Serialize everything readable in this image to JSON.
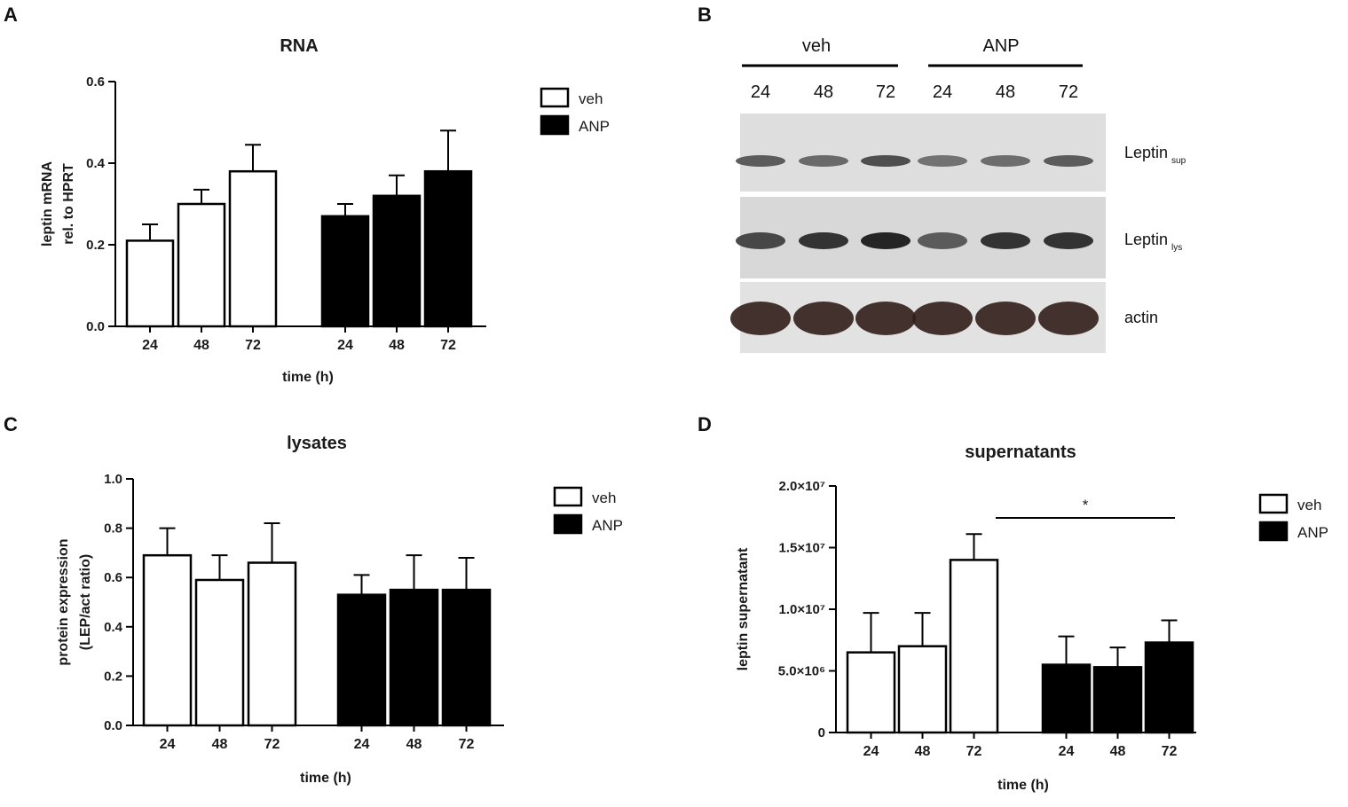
{
  "panel_letters": {
    "a": "A",
    "b": "B",
    "c": "C",
    "d": "D"
  },
  "colors": {
    "veh": "#ffffff",
    "anp": "#000000",
    "stroke": "#000000"
  },
  "chart_data": [
    {
      "id": "A",
      "type": "bar",
      "title": "RNA",
      "ylabel": [
        "leptin mRNA",
        "rel. to HPRT"
      ],
      "xlabel": "time (h)",
      "ylim": [
        0,
        0.6
      ],
      "yticks": [
        0.0,
        0.2,
        0.4,
        0.6
      ],
      "ytick_labels": [
        "0.0",
        "0.2",
        "0.4",
        "0.6"
      ],
      "categories": [
        "24",
        "48",
        "72"
      ],
      "series": [
        {
          "name": "veh",
          "values": [
            0.21,
            0.3,
            0.38
          ],
          "errors": [
            0.04,
            0.035,
            0.065
          ]
        },
        {
          "name": "ANP",
          "values": [
            0.27,
            0.32,
            0.38
          ],
          "errors": [
            0.03,
            0.05,
            0.1
          ]
        }
      ],
      "legend": [
        "veh",
        "ANP"
      ],
      "legend_position": "top-right",
      "annotation": ""
    },
    {
      "id": "C",
      "type": "bar",
      "title": "lysates",
      "ylabel": [
        "protein expression",
        "(LEP/act ratio)"
      ],
      "xlabel": "time (h)",
      "ylim": [
        0,
        1.0
      ],
      "yticks": [
        0.0,
        0.2,
        0.4,
        0.6,
        0.8,
        1.0
      ],
      "ytick_labels": [
        "0.0",
        "0.2",
        "0.4",
        "0.6",
        "0.8",
        "1.0"
      ],
      "categories": [
        "24",
        "48",
        "72"
      ],
      "series": [
        {
          "name": "veh",
          "values": [
            0.69,
            0.59,
            0.66
          ],
          "errors": [
            0.11,
            0.1,
            0.16
          ]
        },
        {
          "name": "ANP",
          "values": [
            0.53,
            0.55,
            0.55
          ],
          "errors": [
            0.08,
            0.14,
            0.13
          ]
        }
      ],
      "legend": [
        "veh",
        "ANP"
      ],
      "legend_position": "top-right",
      "annotation": ""
    },
    {
      "id": "D",
      "type": "bar",
      "title": "supernatants",
      "ylabel": [
        "leptin supernatant"
      ],
      "xlabel": "time (h)",
      "ylim": [
        0,
        20000000
      ],
      "yticks": [
        0,
        5000000,
        10000000,
        15000000,
        20000000
      ],
      "ytick_labels": [
        "0",
        "5.0×10⁶",
        "1.0×10⁷",
        "1.5×10⁷",
        "2.0×10⁷"
      ],
      "categories": [
        "24",
        "48",
        "72"
      ],
      "series": [
        {
          "name": "veh",
          "values": [
            6500000,
            7000000,
            14000000
          ],
          "errors": [
            3200000,
            2700000,
            2100000
          ]
        },
        {
          "name": "ANP",
          "values": [
            5500000,
            5300000,
            7300000
          ],
          "errors": [
            2300000,
            1600000,
            1800000
          ]
        }
      ],
      "legend": [
        "veh",
        "ANP"
      ],
      "legend_position": "top-right",
      "annotation": "*"
    }
  ],
  "blot": {
    "groups": [
      "veh",
      "ANP"
    ],
    "lanes": [
      "24",
      "48",
      "72",
      "24",
      "48",
      "72"
    ],
    "bands": [
      {
        "label": "Leptin",
        "sub": "sup",
        "intensity": [
          0.55,
          0.45,
          0.65,
          0.38,
          0.42,
          0.55
        ]
      },
      {
        "label": "Leptin",
        "sub": "lys",
        "intensity": [
          0.7,
          0.85,
          0.95,
          0.55,
          0.85,
          0.85
        ]
      },
      {
        "label": "actin",
        "sub": "",
        "intensity": [
          1,
          1,
          1,
          1,
          1,
          1
        ]
      }
    ]
  }
}
